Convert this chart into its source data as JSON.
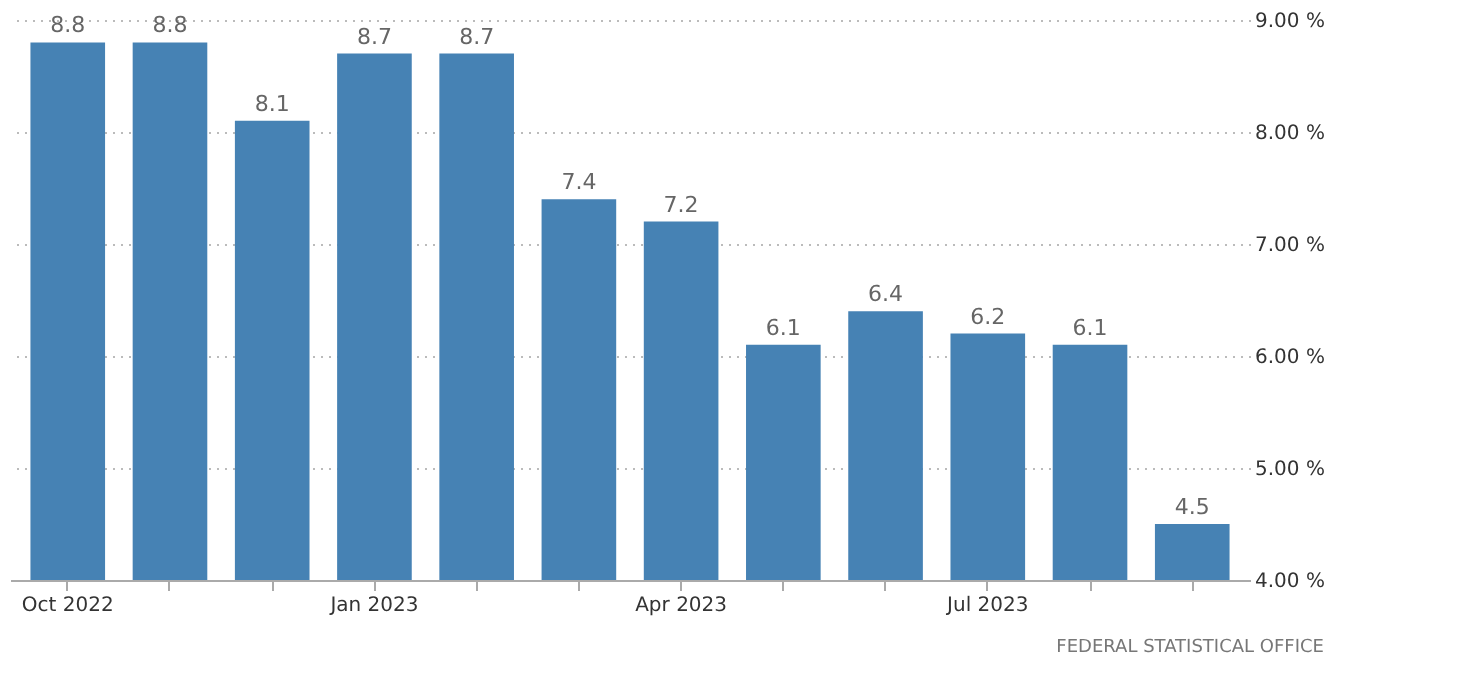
{
  "chart_data": {
    "type": "bar",
    "categories": [
      "Oct 2022",
      null,
      null,
      "Jan 2023",
      null,
      null,
      "Apr 2023",
      null,
      null,
      "Jul 2023",
      null,
      null
    ],
    "values": [
      8.8,
      8.8,
      8.1,
      8.7,
      8.7,
      7.4,
      7.2,
      6.1,
      6.4,
      6.2,
      6.1,
      4.5
    ],
    "color": "#4682b4",
    "ylim": [
      4,
      9
    ],
    "yticks": [
      {
        "value": 4,
        "label": "4.00 %"
      },
      {
        "value": 5,
        "label": "5.00 %"
      },
      {
        "value": 6,
        "label": "6.00 %"
      },
      {
        "value": 7,
        "label": "7.00 %"
      },
      {
        "value": 8,
        "label": "8.00 %"
      },
      {
        "value": 9,
        "label": "9.00 %"
      }
    ],
    "grid": "y",
    "data_labels": true,
    "annotations": [
      "FEDERAL STATISTICAL OFFICE"
    ]
  }
}
